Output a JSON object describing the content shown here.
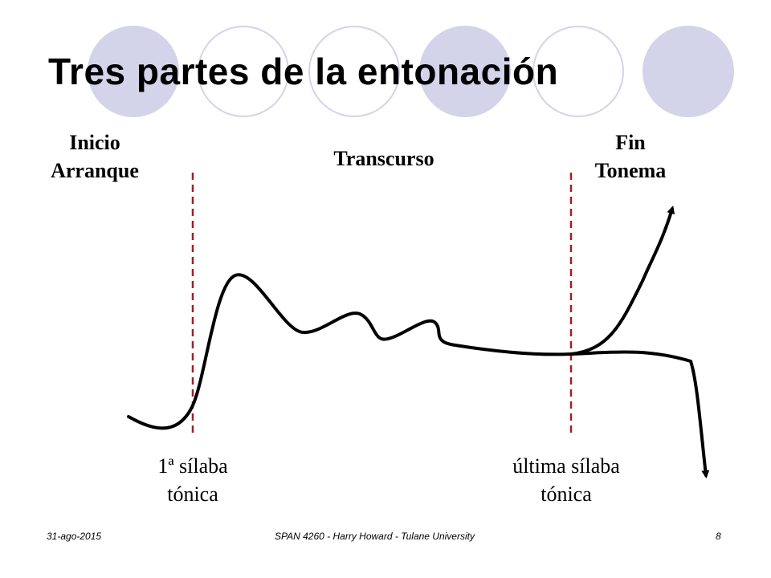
{
  "title": "Tres partes de la entonación",
  "labels": {
    "inicio": [
      "Inicio",
      "Arranque"
    ],
    "transcurso": "Transcurso",
    "fin": [
      "Fin",
      "Tonema"
    ]
  },
  "syllables": {
    "first": [
      "1ª sílaba",
      "tónica"
    ],
    "last": [
      "última sílaba",
      "tónica"
    ]
  },
  "footer": {
    "date": "31-ago-2015",
    "course": "SPAN 4260 - Harry Howard - Tulane University",
    "page": "8"
  },
  "colors": {
    "circle_fill": "#d3d3ea",
    "boundary_line": "#a31f24",
    "curve": "#000000"
  }
}
